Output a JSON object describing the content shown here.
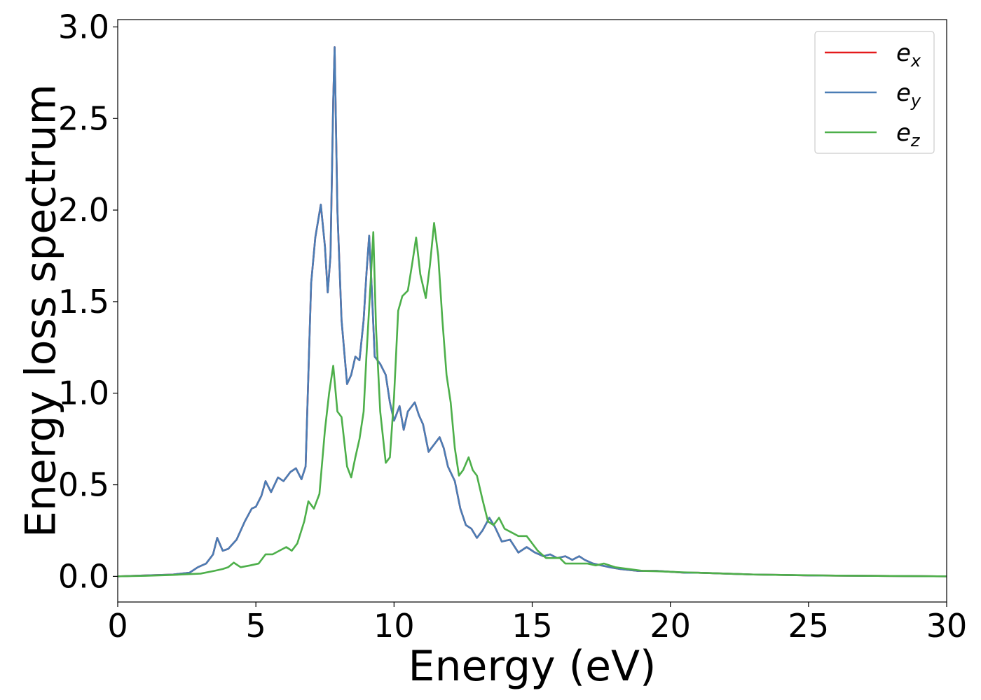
{
  "chart_data": {
    "type": "line",
    "title": "",
    "xlabel": "Energy (eV)",
    "ylabel": "Energy loss spectrum",
    "xlim": [
      0,
      30
    ],
    "ylim": [
      -0.14,
      3.04
    ],
    "xticks": [
      0,
      5,
      10,
      15,
      20,
      25,
      30
    ],
    "xtick_labels": [
      "0",
      "5",
      "10",
      "15",
      "20",
      "25",
      "30"
    ],
    "yticks": [
      0.0,
      0.5,
      1.0,
      1.5,
      2.0,
      2.5,
      3.0
    ],
    "ytick_labels": [
      "0.0",
      "0.5",
      "1.0",
      "1.5",
      "2.0",
      "2.5",
      "3.0"
    ],
    "grid": false,
    "legend_position": "top-right",
    "colors": {
      "ex": "#e41a1c",
      "ey": "#4a7db5",
      "ez": "#4daf4a"
    },
    "series": [
      {
        "name": "e",
        "sub": "x",
        "color": "#e41a1c",
        "x": [
          0,
          1,
          2,
          2.6,
          2.9,
          3.2,
          3.45,
          3.6,
          3.8,
          4.0,
          4.3,
          4.6,
          4.85,
          5.0,
          5.2,
          5.35,
          5.55,
          5.8,
          6.0,
          6.25,
          6.45,
          6.65,
          6.8,
          7.0,
          7.15,
          7.35,
          7.5,
          7.6,
          7.7,
          7.8,
          7.85,
          7.95,
          8.1,
          8.3,
          8.45,
          8.6,
          8.75,
          8.9,
          9.0,
          9.1,
          9.2,
          9.3,
          9.5,
          9.7,
          9.85,
          10.0,
          10.2,
          10.35,
          10.5,
          10.75,
          10.9,
          11.05,
          11.25,
          11.45,
          11.65,
          11.8,
          11.95,
          12.2,
          12.4,
          12.6,
          12.8,
          13.0,
          13.2,
          13.45,
          13.65,
          13.9,
          14.2,
          14.5,
          14.8,
          15.1,
          15.4,
          15.65,
          15.9,
          16.2,
          16.45,
          16.7,
          16.9,
          17.2,
          17.5,
          17.8,
          18.2,
          18.8,
          19.5,
          20.0,
          20.5,
          21.0,
          22.0,
          23.0,
          24.0,
          25.0,
          26.0,
          27.0,
          28.0,
          29.0,
          30.0
        ],
        "y": [
          0.0,
          0.005,
          0.01,
          0.02,
          0.05,
          0.07,
          0.12,
          0.21,
          0.14,
          0.15,
          0.2,
          0.3,
          0.37,
          0.38,
          0.44,
          0.52,
          0.46,
          0.54,
          0.52,
          0.57,
          0.59,
          0.53,
          0.6,
          1.6,
          1.85,
          2.03,
          1.8,
          1.55,
          1.75,
          2.6,
          2.89,
          2.0,
          1.4,
          1.05,
          1.1,
          1.2,
          1.18,
          1.4,
          1.65,
          1.86,
          1.55,
          1.2,
          1.16,
          1.1,
          0.95,
          0.85,
          0.93,
          0.8,
          0.9,
          0.95,
          0.88,
          0.83,
          0.68,
          0.72,
          0.76,
          0.7,
          0.6,
          0.52,
          0.37,
          0.28,
          0.26,
          0.21,
          0.25,
          0.32,
          0.27,
          0.19,
          0.2,
          0.13,
          0.16,
          0.13,
          0.11,
          0.12,
          0.1,
          0.11,
          0.09,
          0.11,
          0.09,
          0.07,
          0.06,
          0.05,
          0.04,
          0.03,
          0.03,
          0.025,
          0.02,
          0.02,
          0.015,
          0.01,
          0.008,
          0.005,
          0.004,
          0.003,
          0.002,
          0.001,
          0.0
        ]
      },
      {
        "name": "e",
        "sub": "y",
        "color": "#4a7db5",
        "x": [
          0,
          1,
          2,
          2.6,
          2.9,
          3.2,
          3.45,
          3.6,
          3.8,
          4.0,
          4.3,
          4.6,
          4.85,
          5.0,
          5.2,
          5.35,
          5.55,
          5.8,
          6.0,
          6.25,
          6.45,
          6.65,
          6.8,
          7.0,
          7.15,
          7.35,
          7.5,
          7.6,
          7.7,
          7.8,
          7.85,
          7.95,
          8.1,
          8.3,
          8.45,
          8.6,
          8.75,
          8.9,
          9.0,
          9.1,
          9.2,
          9.3,
          9.5,
          9.7,
          9.85,
          10.0,
          10.2,
          10.35,
          10.5,
          10.75,
          10.9,
          11.05,
          11.25,
          11.45,
          11.65,
          11.8,
          11.95,
          12.2,
          12.4,
          12.6,
          12.8,
          13.0,
          13.2,
          13.45,
          13.65,
          13.9,
          14.2,
          14.5,
          14.8,
          15.1,
          15.4,
          15.65,
          15.9,
          16.2,
          16.45,
          16.7,
          16.9,
          17.2,
          17.5,
          17.8,
          18.2,
          18.8,
          19.5,
          20.0,
          20.5,
          21.0,
          22.0,
          23.0,
          24.0,
          25.0,
          26.0,
          27.0,
          28.0,
          29.0,
          30.0
        ],
        "y": [
          0.0,
          0.005,
          0.01,
          0.02,
          0.05,
          0.07,
          0.12,
          0.21,
          0.14,
          0.15,
          0.2,
          0.3,
          0.37,
          0.38,
          0.44,
          0.52,
          0.46,
          0.54,
          0.52,
          0.57,
          0.59,
          0.53,
          0.6,
          1.6,
          1.85,
          2.03,
          1.8,
          1.55,
          1.75,
          2.6,
          2.89,
          2.0,
          1.4,
          1.05,
          1.1,
          1.2,
          1.18,
          1.4,
          1.65,
          1.86,
          1.55,
          1.2,
          1.16,
          1.1,
          0.95,
          0.85,
          0.93,
          0.8,
          0.9,
          0.95,
          0.88,
          0.83,
          0.68,
          0.72,
          0.76,
          0.7,
          0.6,
          0.52,
          0.37,
          0.28,
          0.26,
          0.21,
          0.25,
          0.32,
          0.27,
          0.19,
          0.2,
          0.13,
          0.16,
          0.13,
          0.11,
          0.12,
          0.1,
          0.11,
          0.09,
          0.11,
          0.09,
          0.07,
          0.06,
          0.05,
          0.04,
          0.03,
          0.03,
          0.025,
          0.02,
          0.02,
          0.015,
          0.01,
          0.008,
          0.005,
          0.004,
          0.003,
          0.002,
          0.001,
          0.0
        ]
      },
      {
        "name": "e",
        "sub": "z",
        "color": "#4daf4a",
        "x": [
          0,
          1,
          2,
          3,
          3.5,
          3.8,
          4.0,
          4.2,
          4.45,
          4.8,
          5.1,
          5.35,
          5.6,
          5.85,
          6.1,
          6.3,
          6.5,
          6.75,
          6.9,
          7.1,
          7.3,
          7.5,
          7.65,
          7.8,
          7.95,
          8.1,
          8.3,
          8.45,
          8.6,
          8.75,
          8.9,
          9.0,
          9.15,
          9.25,
          9.35,
          9.5,
          9.7,
          9.85,
          10.0,
          10.15,
          10.3,
          10.5,
          10.65,
          10.8,
          10.95,
          11.15,
          11.3,
          11.45,
          11.6,
          11.75,
          11.9,
          12.05,
          12.2,
          12.35,
          12.5,
          12.7,
          12.85,
          13.0,
          13.2,
          13.4,
          13.6,
          13.8,
          14.0,
          14.25,
          14.5,
          14.8,
          15.0,
          15.2,
          15.5,
          15.8,
          16.0,
          16.2,
          16.5,
          16.8,
          17.0,
          17.3,
          17.6,
          18.0,
          18.5,
          19.0,
          19.5,
          20.0,
          20.5,
          21.0,
          22.0,
          23.0,
          24.0,
          25.0,
          26.0,
          27.0,
          28.0,
          29.0,
          30.0
        ],
        "y": [
          0.0,
          0.003,
          0.008,
          0.015,
          0.03,
          0.04,
          0.05,
          0.075,
          0.05,
          0.06,
          0.07,
          0.12,
          0.12,
          0.14,
          0.16,
          0.14,
          0.18,
          0.3,
          0.41,
          0.37,
          0.45,
          0.8,
          1.0,
          1.15,
          0.9,
          0.87,
          0.6,
          0.54,
          0.65,
          0.75,
          0.9,
          1.2,
          1.6,
          1.88,
          1.35,
          0.9,
          0.62,
          0.65,
          0.98,
          1.45,
          1.53,
          1.56,
          1.7,
          1.85,
          1.65,
          1.52,
          1.7,
          1.93,
          1.75,
          1.4,
          1.1,
          0.95,
          0.7,
          0.55,
          0.58,
          0.65,
          0.58,
          0.55,
          0.42,
          0.3,
          0.28,
          0.32,
          0.26,
          0.24,
          0.22,
          0.22,
          0.18,
          0.14,
          0.1,
          0.1,
          0.1,
          0.07,
          0.07,
          0.07,
          0.07,
          0.06,
          0.07,
          0.05,
          0.04,
          0.03,
          0.028,
          0.025,
          0.022,
          0.02,
          0.015,
          0.01,
          0.008,
          0.006,
          0.004,
          0.003,
          0.002,
          0.001,
          0.0
        ]
      }
    ]
  }
}
